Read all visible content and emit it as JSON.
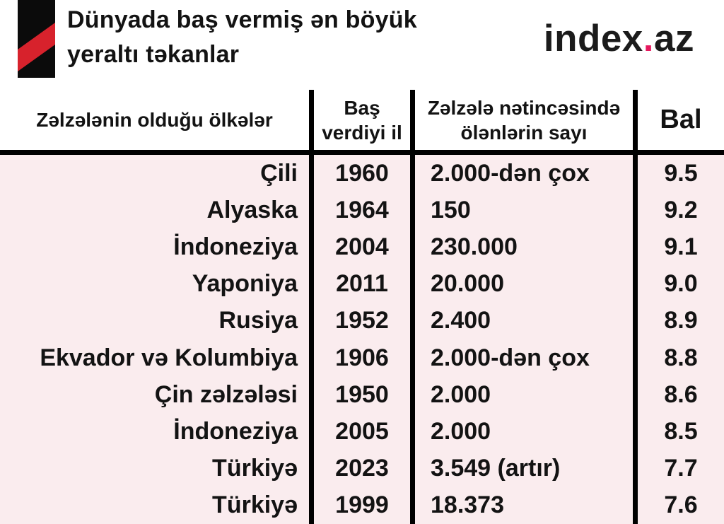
{
  "header": {
    "title_line1": "Dünyada baş vermiş ən böyük",
    "title_line2": "yeraltı təkanlar",
    "brand": {
      "part1": "index",
      "dot": ".",
      "part2": "az"
    }
  },
  "colors": {
    "body_background": "#faecee",
    "header_background": "#ffffff",
    "line_color": "#000000",
    "logo_black": "#0b0b0b",
    "logo_stripe_red": "#d7222c",
    "brand_dot_pink": "#e6185e",
    "text_color": "#131313"
  },
  "chart_data": {
    "type": "table",
    "title": "Dünyada baş vermiş ən böyük yeraltı təkanlar",
    "columns": [
      "Zəlzələnin olduğu ölkələr",
      "Baş\nverdiyi il",
      "Zəlzələ nətincəsində\nölənlərin sayı",
      "Bal"
    ],
    "rows": [
      [
        "Çili",
        "1960",
        "2.000-dən çox",
        "9.5"
      ],
      [
        "Alyaska",
        "1964",
        "150",
        "9.2"
      ],
      [
        "İndoneziya",
        "2004",
        "230.000",
        "9.1"
      ],
      [
        "Yaponiya",
        "2011",
        "20.000",
        "9.0"
      ],
      [
        "Rusiya",
        "1952",
        "2.400",
        "8.9"
      ],
      [
        "Ekvador və Kolumbiya",
        "1906",
        "2.000-dən çox",
        "8.8"
      ],
      [
        "Çin zəlzələsi",
        "1950",
        "2.000",
        "8.6"
      ],
      [
        "İndoneziya",
        "2005",
        "2.000",
        "8.5"
      ],
      [
        "Türkiyə",
        "2023",
        "3.549 (artır)",
        "7.7"
      ],
      [
        "Türkiyə",
        "1999",
        "18.373",
        "7.6"
      ]
    ]
  }
}
